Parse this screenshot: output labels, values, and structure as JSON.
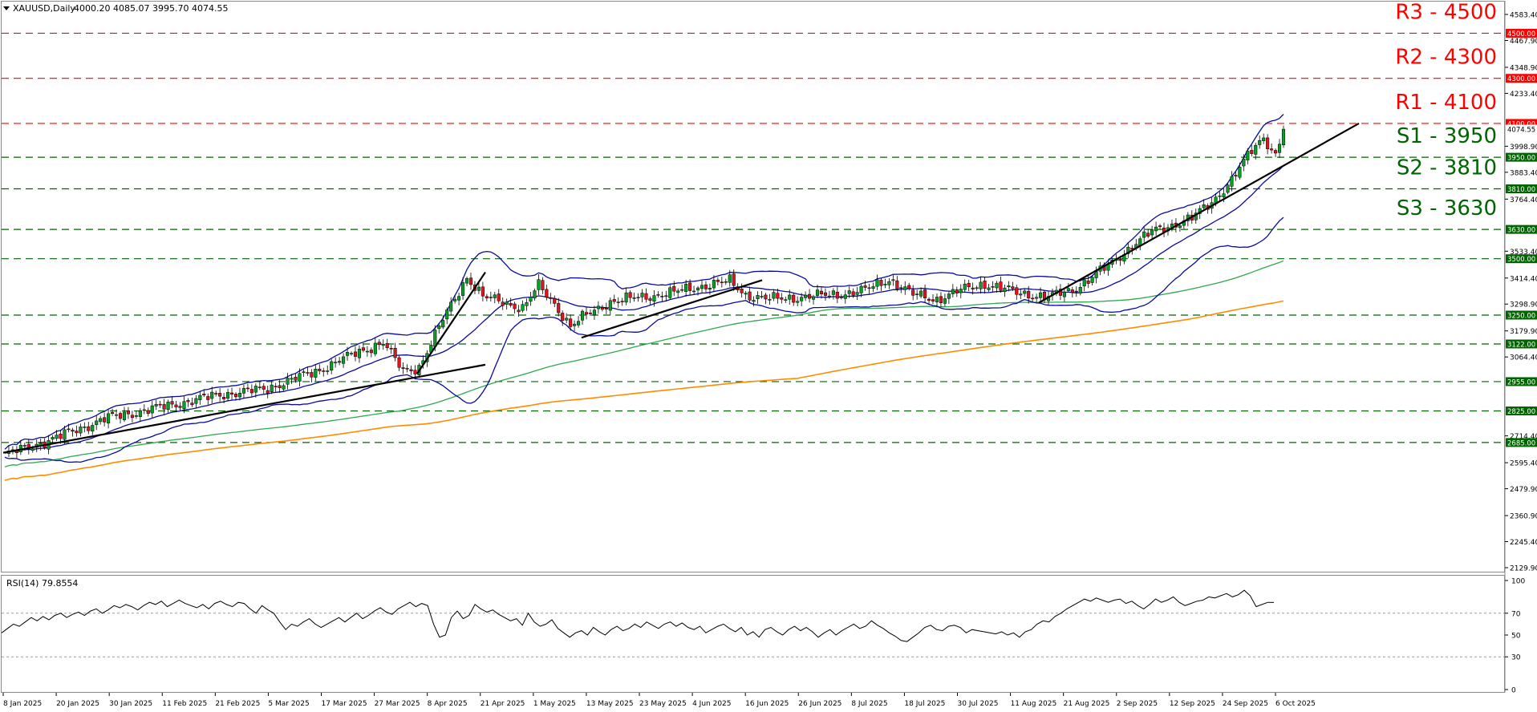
{
  "header": {
    "symbol": "XAUUSD,Daily",
    "ohlc": "4000.20 4085.07 3995.70 4074.55"
  },
  "chart_data": [
    {
      "type": "candlestick",
      "title": "XAUUSD,Daily",
      "ylim": [
        2129.9,
        4583.4
      ],
      "yticks": [
        4583.4,
        4467.9,
        4348.9,
        4233.4,
        3998.9,
        3883.4,
        3764.4,
        3533.4,
        3414.4,
        3298.9,
        3179.9,
        3064.4,
        2714.4,
        2595.4,
        2479.9,
        2360.9,
        2245.4,
        2129.9
      ],
      "xticks": [
        "8 Jan 2025",
        "20 Jan 2025",
        "30 Jan 2025",
        "11 Feb 2025",
        "21 Feb 2025",
        "5 Mar 2025",
        "17 Mar 2025",
        "27 Mar 2025",
        "8 Apr 2025",
        "21 Apr 2025",
        "1 May 2025",
        "13 May 2025",
        "23 May 2025",
        "4 Jun 2025",
        "16 Jun 2025",
        "26 Jun 2025",
        "8 Jul 2025",
        "18 Jul 2025",
        "30 Jul 2025",
        "11 Aug 2025",
        "21 Aug 2025",
        "2 Sep 2025",
        "12 Sep 2025",
        "24 Sep 2025",
        "6 Oct 2025"
      ],
      "price_label": "4074.55",
      "resistance_levels": [
        {
          "label": "R3 - 4500",
          "value": 4500,
          "tag": "4500.00"
        },
        {
          "label": "R2 - 4300",
          "value": 4300,
          "tag": "4300.00"
        },
        {
          "label": "R1 - 4100",
          "value": 4100,
          "tag": "4100.00"
        }
      ],
      "support_levels": [
        {
          "label": "S1 - 3950",
          "value": 3950,
          "tag": "3950.00"
        },
        {
          "label": "S2 - 3810",
          "value": 3810,
          "tag": "3810.00"
        },
        {
          "label": "S3 - 3630",
          "value": 3630,
          "tag": "3630.00"
        },
        {
          "label": "",
          "value": 3500,
          "tag": "3500.00"
        },
        {
          "label": "",
          "value": 3250,
          "tag": "3250.00"
        },
        {
          "label": "",
          "value": 3122,
          "tag": "3122.00"
        },
        {
          "label": "",
          "value": 2955,
          "tag": "2955.00"
        },
        {
          "label": "",
          "value": 2825,
          "tag": "2825.00"
        },
        {
          "label": "",
          "value": 2685,
          "tag": "2685.00"
        }
      ],
      "overlays": {
        "bollinger_color": "#0a0a9e",
        "ma_mid_color": "#2fa84f",
        "ma_long_color": "#ff8c00",
        "trendline_color": "#000000",
        "resistance_color": "#ff0000",
        "support_color": "#006400",
        "bull_candle_color": "#0a9e27",
        "bear_candle_color": "#e0141e"
      }
    },
    {
      "type": "line",
      "title": "RSI(14) 79.8554",
      "ylim": [
        0,
        100
      ],
      "yticks": [
        100,
        70,
        50,
        30,
        0
      ],
      "reference_lines": [
        70,
        30
      ],
      "line_color": "#000000",
      "rsi_values": [
        52,
        56,
        60,
        58,
        62,
        66,
        63,
        67,
        64,
        68,
        70,
        66,
        69,
        71,
        68,
        72,
        74,
        70,
        73,
        77,
        75,
        78,
        76,
        73,
        77,
        80,
        78,
        81,
        76,
        79,
        82,
        79,
        77,
        75,
        78,
        74,
        79,
        81,
        78,
        76,
        80,
        79,
        74,
        70,
        77,
        73,
        70,
        62,
        55,
        60,
        58,
        62,
        65,
        60,
        57,
        60,
        63,
        66,
        62,
        66,
        70,
        65,
        68,
        72,
        75,
        71,
        69,
        74,
        77,
        80,
        76,
        79,
        77,
        60,
        48,
        50,
        66,
        72,
        65,
        68,
        78,
        74,
        71,
        73,
        69,
        66,
        63,
        65,
        59,
        70,
        62,
        58,
        60,
        64,
        56,
        52,
        48,
        52,
        54,
        50,
        57,
        53,
        50,
        55,
        58,
        54,
        56,
        60,
        57,
        62,
        59,
        56,
        60,
        62,
        58,
        61,
        57,
        55,
        58,
        52,
        55,
        58,
        60,
        56,
        53,
        57,
        50,
        53,
        48,
        55,
        57,
        53,
        50,
        55,
        58,
        54,
        57,
        53,
        48,
        52,
        55,
        50,
        54,
        57,
        60,
        56,
        58,
        63,
        59,
        56,
        52,
        49,
        45,
        44,
        48,
        52,
        57,
        59,
        55,
        54,
        58,
        59,
        57,
        52,
        55,
        54,
        53,
        52,
        51,
        53,
        50,
        52,
        48,
        53,
        55,
        60,
        63,
        62,
        67,
        70,
        74,
        77,
        80,
        83,
        81,
        84,
        82,
        80,
        82,
        83,
        79,
        81,
        77,
        74,
        78,
        83,
        80,
        82,
        85,
        80,
        77,
        79,
        81,
        82,
        85,
        84,
        86,
        88,
        85,
        87,
        91,
        86,
        76,
        78,
        80,
        79.86
      ]
    }
  ]
}
